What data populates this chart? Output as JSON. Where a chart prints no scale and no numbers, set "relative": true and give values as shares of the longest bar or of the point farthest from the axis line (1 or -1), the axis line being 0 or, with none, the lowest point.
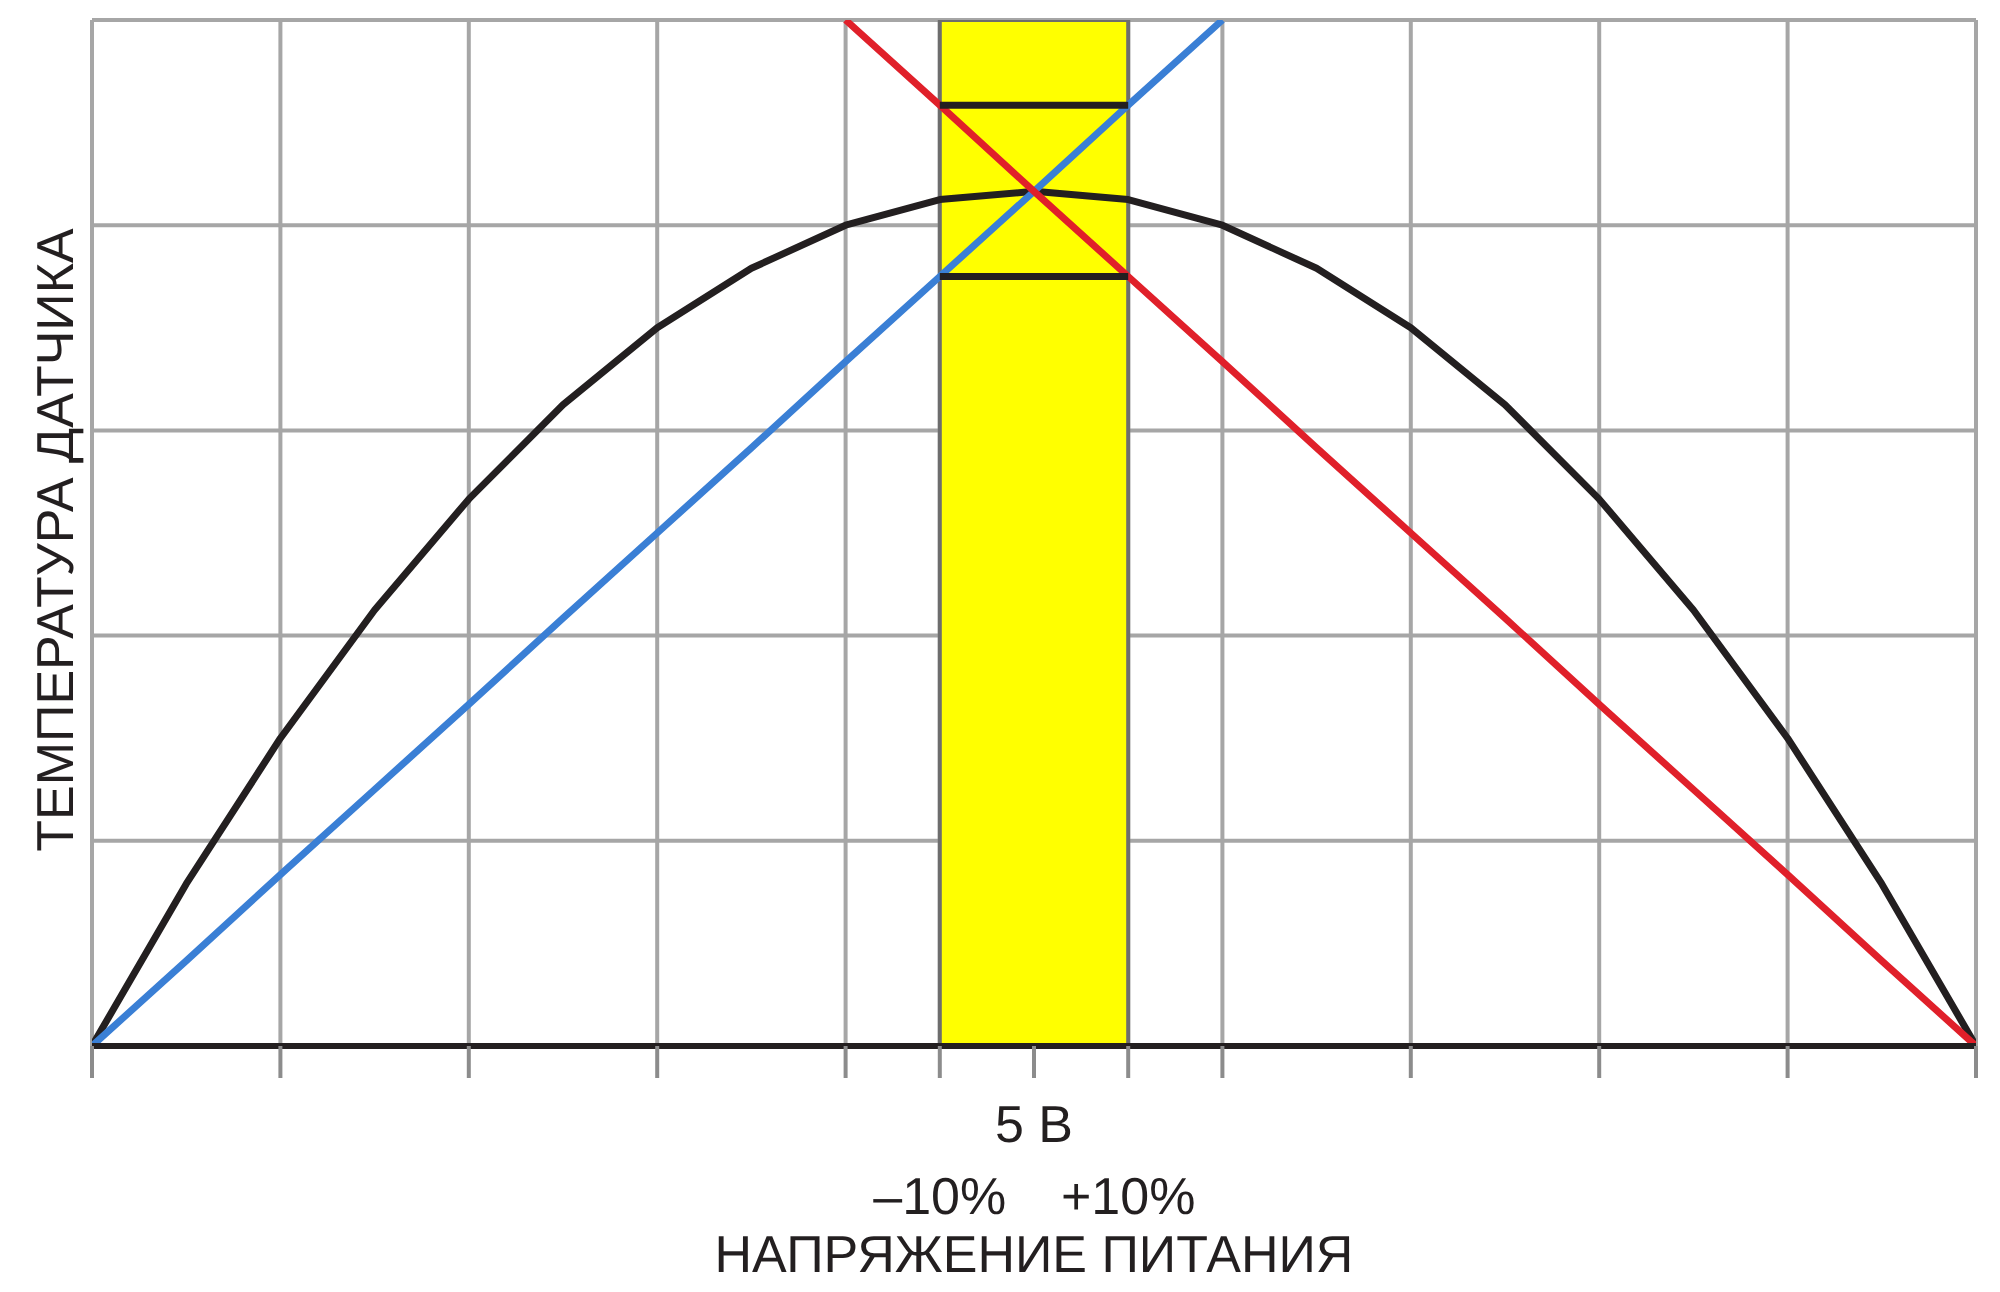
{
  "chart_data": {
    "type": "line",
    "relative": true,
    "xlabel": "НАПРЯЖЕНИЕ ПИТАНИЯ",
    "ylabel": "ТЕМПЕРАТУРА ДАТЧИКА",
    "categories": [
      null,
      null,
      null,
      null,
      null,
      null,
      null,
      null,
      null,
      "–10%",
      "5 В",
      "+10%",
      null,
      null,
      null,
      null,
      null,
      null,
      null,
      null,
      null
    ],
    "grid": true,
    "marker": "none",
    "line_style": "solid",
    "bands": [
      {
        "axis": "x",
        "from": "–10%",
        "to": "+10%",
        "color": "#ffff00"
      }
    ],
    "series": [
      {
        "color": "#231f20",
        "values": [
          0,
          0.158,
          0.3,
          0.425,
          0.533,
          0.625,
          0.7,
          0.758,
          0.8,
          0.825,
          0.833,
          0.825,
          0.8,
          0.758,
          0.7,
          0.625,
          0.533,
          0.425,
          0.3,
          0.158,
          0
        ]
      },
      {
        "color": "#3a7fd5",
        "values": [
          0,
          0.083,
          0.167,
          0.25,
          0.333,
          0.417,
          0.5,
          0.583,
          0.667,
          0.75,
          0.833,
          0.917,
          1,
          null,
          null,
          null,
          null,
          null,
          null,
          null,
          null
        ]
      },
      {
        "color": "#e0202a",
        "values": [
          null,
          null,
          null,
          null,
          null,
          null,
          null,
          null,
          1,
          0.917,
          0.833,
          0.75,
          0.667,
          0.583,
          0.5,
          0.417,
          0.333,
          0.25,
          0.167,
          0.083,
          0
        ]
      },
      {
        "color": "#231f20",
        "values": [
          null,
          null,
          null,
          null,
          null,
          null,
          null,
          null,
          null,
          0.917,
          0.917,
          0.917,
          null,
          null,
          null,
          null,
          null,
          null,
          null,
          null,
          null
        ]
      },
      {
        "color": "#231f20",
        "values": [
          null,
          null,
          null,
          null,
          null,
          null,
          null,
          null,
          null,
          0.75,
          0.75,
          0.75,
          null,
          null,
          null,
          null,
          null,
          null,
          null,
          null,
          null
        ]
      }
    ]
  }
}
